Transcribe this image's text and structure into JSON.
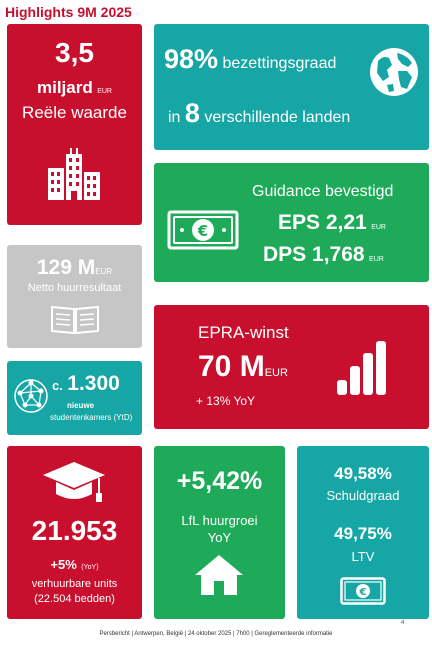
{
  "header": {
    "title": "Highlights 9M 2025"
  },
  "tiles": {
    "value": {
      "amount": "3,5",
      "unit_big": "miljard",
      "unit_small": "EUR",
      "label": "Reële waarde"
    },
    "occupancy": {
      "percent": "98%",
      "percent_label": "bezettingsgraad",
      "prefix": "in",
      "count": "8",
      "count_label": "verschillende landen"
    },
    "guidance": {
      "heading": "Guidance bevestigd",
      "eps_label": "EPS 2,21",
      "eps_unit": "EUR",
      "dps_label": "DPS 1,768",
      "dps_unit": "EUR"
    },
    "rental": {
      "amount": "129 M",
      "unit": "EUR",
      "label": "Netto huurresultaat"
    },
    "epra": {
      "heading": "EPRA-winst",
      "amount": "70 M",
      "unit": "EUR",
      "growth": "+ 13% YoY"
    },
    "students": {
      "prefix": "c.",
      "count": "1.300",
      "line1": "nieuwe",
      "line2": "studentenkamers (YtD)"
    },
    "units": {
      "count": "21.953",
      "growth": "+5%",
      "growth_note": "(YoY)",
      "line1": "verhuurbare units",
      "line2": "(22.504 bedden)"
    },
    "lfl": {
      "amount": "+5,42%",
      "line1": "LfL huurgroei",
      "line2": "YoY"
    },
    "debt": {
      "ratio1": "49,58%",
      "label1": "Schuldgraad",
      "ratio2": "49,75%",
      "label2": "LTV"
    }
  },
  "footer": {
    "text": "Persbericht | Antwerpen, België | 24 oktober 2025 | 7h00 | Gereglementeerde informatie",
    "page_number": "4"
  },
  "colors": {
    "red": "#c8102e",
    "teal": "#17a6a6",
    "green": "#1faa59",
    "gray": "#c6c6c6"
  },
  "icons": [
    "buildings-icon",
    "globe-icon",
    "banknote-icon",
    "book-icon",
    "bar-chart-icon",
    "network-icon",
    "graduation-cap-icon",
    "house-icon",
    "banknote-icon"
  ]
}
